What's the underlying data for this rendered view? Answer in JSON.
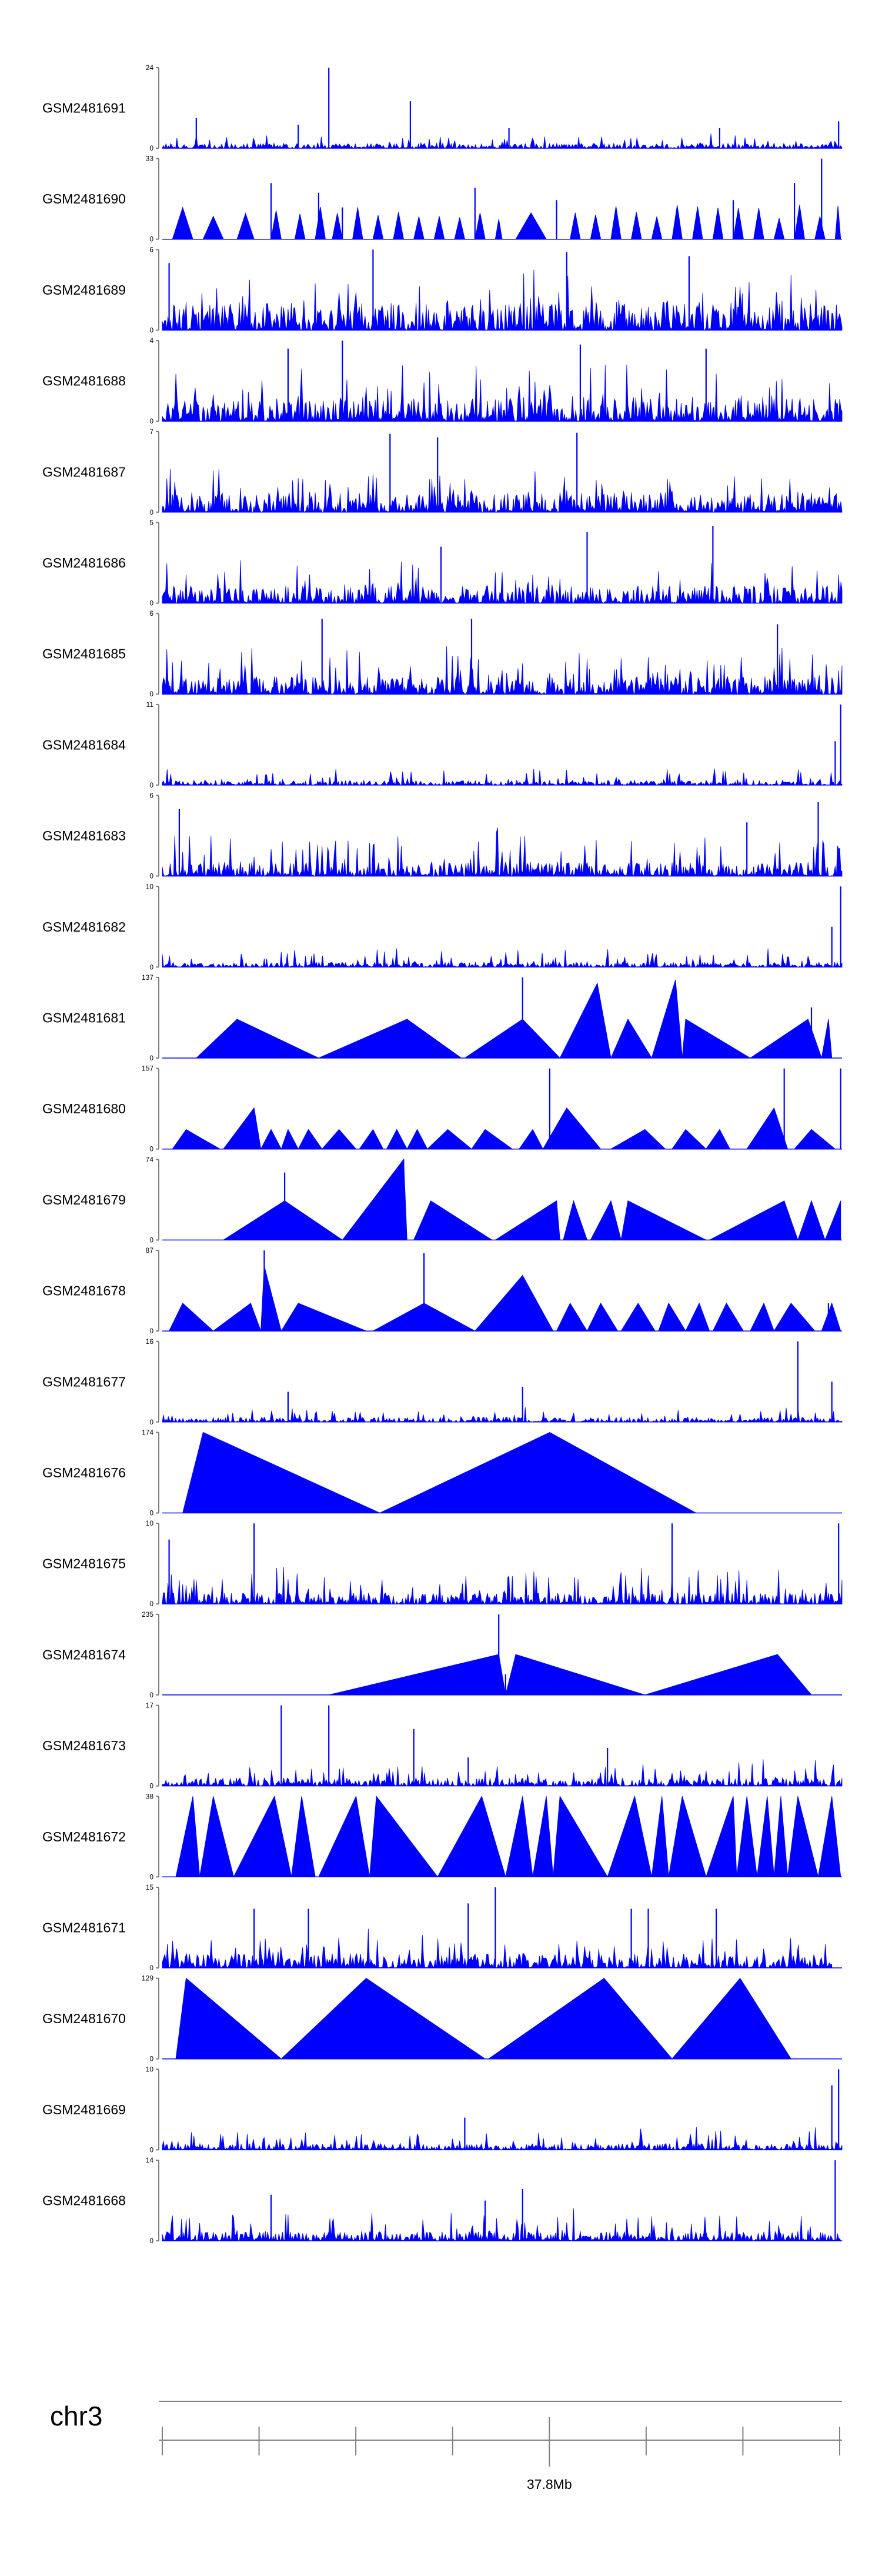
{
  "chart_data": {
    "type": "area",
    "title": "",
    "xlabel": "",
    "ylabel": "",
    "color": "#0000ff",
    "axis_color": "#808080",
    "tracks": [
      {
        "name": "GSM2481691",
        "ymax": 24,
        "ymin": 0,
        "style": "signal",
        "density": 560,
        "floor": 0.06,
        "spread": 0.14,
        "peaks": [
          [
            0.245,
            24
          ],
          [
            0.365,
            14
          ],
          [
            0.05,
            9
          ],
          [
            0.2,
            7
          ],
          [
            0.82,
            6
          ],
          [
            0.995,
            8
          ],
          [
            0.51,
            6
          ]
        ]
      },
      {
        "name": "GSM2481690",
        "ymax": 33,
        "ymin": 0,
        "style": "both",
        "tri": [
          0.015,
          0.045,
          0.06,
          0.09,
          0.11,
          0.135,
          0.16,
          0.175,
          0.195,
          0.21,
          0.225,
          0.24,
          0.25,
          0.265,
          0.28,
          0.295,
          0.31,
          0.325,
          0.34,
          0.355,
          0.37,
          0.385,
          0.4,
          0.415,
          0.43,
          0.445,
          0.46,
          0.475,
          0.49,
          0.5,
          0.52,
          0.565,
          0.6,
          0.615,
          0.63,
          0.645,
          0.66,
          0.675,
          0.69,
          0.705,
          0.72,
          0.735,
          0.75,
          0.765,
          0.78,
          0.795,
          0.81,
          0.825,
          0.84,
          0.855,
          0.87,
          0.885,
          0.9,
          0.915,
          0.93,
          0.945,
          0.96,
          0.975,
          0.99,
          0.998
        ],
        "triHeight": 11,
        "triVar": 3,
        "peaks": [
          [
            0.16,
            23
          ],
          [
            0.23,
            19
          ],
          [
            0.265,
            13
          ],
          [
            0.46,
            21
          ],
          [
            0.58,
            16
          ],
          [
            0.84,
            16
          ],
          [
            0.97,
            33
          ],
          [
            0.93,
            23
          ]
        ]
      },
      {
        "name": "GSM2481689",
        "ymax": 6,
        "ymin": 0,
        "style": "signal",
        "density": 600,
        "floor": 0.35,
        "spread": 0.45,
        "peaks": [
          [
            0.01,
            5
          ],
          [
            0.31,
            6
          ],
          [
            0.595,
            5.8
          ],
          [
            0.775,
            5.5
          ]
        ]
      },
      {
        "name": "GSM2481688",
        "ymax": 4,
        "ymin": 0,
        "style": "signal",
        "density": 600,
        "floor": 0.3,
        "spread": 0.5,
        "peaks": [
          [
            0.265,
            4
          ],
          [
            0.185,
            3.6
          ],
          [
            0.615,
            3.8
          ],
          [
            0.8,
            3.6
          ]
        ]
      },
      {
        "name": "GSM2481687",
        "ymax": 7,
        "ymin": 0,
        "style": "signal",
        "density": 600,
        "floor": 0.25,
        "spread": 0.45,
        "peaks": [
          [
            0.335,
            6.8
          ],
          [
            0.61,
            6.9
          ],
          [
            0.405,
            6.5
          ]
        ]
      },
      {
        "name": "GSM2481686",
        "ymax": 5,
        "ymin": 0,
        "style": "signal",
        "density": 600,
        "floor": 0.22,
        "spread": 0.4,
        "peaks": [
          [
            0.81,
            4.8
          ],
          [
            0.625,
            4.4
          ],
          [
            0.41,
            3.5
          ]
        ]
      },
      {
        "name": "GSM2481685",
        "ymax": 6,
        "ymin": 0,
        "style": "signal",
        "density": 600,
        "floor": 0.22,
        "spread": 0.45,
        "peaks": [
          [
            0.235,
            5.6
          ],
          [
            0.455,
            5.6
          ],
          [
            0.905,
            5.2
          ]
        ]
      },
      {
        "name": "GSM2481684",
        "ymax": 11,
        "ymin": 0,
        "style": "signal",
        "density": 560,
        "floor": 0.06,
        "spread": 0.18,
        "peaks": [
          [
            0.998,
            11
          ],
          [
            0.99,
            6
          ]
        ]
      },
      {
        "name": "GSM2481683",
        "ymax": 6,
        "ymin": 0,
        "style": "signal",
        "density": 600,
        "floor": 0.18,
        "spread": 0.45,
        "peaks": [
          [
            0.965,
            5.5
          ],
          [
            0.025,
            5
          ],
          [
            0.86,
            4
          ]
        ]
      },
      {
        "name": "GSM2481682",
        "ymax": 10,
        "ymin": 0,
        "style": "signal",
        "density": 560,
        "floor": 0.06,
        "spread": 0.2,
        "peaks": [
          [
            0.998,
            10
          ],
          [
            0.985,
            5
          ]
        ]
      },
      {
        "name": "GSM2481681",
        "ymax": 137,
        "ymin": 0,
        "style": "triangles",
        "shapes": [
          [
            0.05,
            0.11,
            0.23,
            66
          ],
          [
            0.23,
            0.36,
            0.44,
            66
          ],
          [
            0.445,
            0.53,
            0.585,
            66
          ],
          [
            0.585,
            0.64,
            0.66,
            127
          ],
          [
            0.66,
            0.685,
            0.72,
            66
          ],
          [
            0.72,
            0.755,
            0.765,
            133
          ],
          [
            0.765,
            0.77,
            0.865,
            66
          ],
          [
            0.865,
            0.95,
            0.97,
            66
          ],
          [
            0.97,
            0.98,
            0.985,
            66
          ]
        ],
        "spikes": [
          [
            0.53,
            137
          ],
          [
            0.955,
            86
          ]
        ]
      },
      {
        "name": "GSM2481680",
        "ymax": 157,
        "ymin": 0,
        "style": "triangles",
        "shapes": [
          [
            0.015,
            0.035,
            0.085,
            38
          ],
          [
            0.09,
            0.135,
            0.145,
            80
          ],
          [
            0.145,
            0.16,
            0.175,
            38
          ],
          [
            0.175,
            0.185,
            0.2,
            38
          ],
          [
            0.2,
            0.215,
            0.235,
            38
          ],
          [
            0.235,
            0.26,
            0.285,
            38
          ],
          [
            0.29,
            0.31,
            0.325,
            38
          ],
          [
            0.33,
            0.345,
            0.36,
            38
          ],
          [
            0.36,
            0.375,
            0.39,
            38
          ],
          [
            0.39,
            0.42,
            0.455,
            38
          ],
          [
            0.455,
            0.475,
            0.515,
            38
          ],
          [
            0.525,
            0.545,
            0.56,
            38
          ],
          [
            0.56,
            0.595,
            0.645,
            80
          ],
          [
            0.66,
            0.71,
            0.74,
            38
          ],
          [
            0.75,
            0.77,
            0.8,
            38
          ],
          [
            0.8,
            0.82,
            0.835,
            38
          ],
          [
            0.86,
            0.9,
            0.92,
            80
          ],
          [
            0.93,
            0.955,
            0.99,
            38
          ]
        ],
        "spikes": [
          [
            0.915,
            157
          ],
          [
            0.998,
            157
          ],
          [
            0.57,
            157
          ]
        ]
      },
      {
        "name": "GSM2481679",
        "ymax": 74,
        "ymin": 0,
        "style": "triangles",
        "shapes": [
          [
            0.09,
            0.18,
            0.265,
            36
          ],
          [
            0.265,
            0.355,
            0.36,
            74
          ],
          [
            0.37,
            0.395,
            0.485,
            36
          ],
          [
            0.49,
            0.58,
            0.585,
            36
          ],
          [
            0.59,
            0.605,
            0.625,
            36
          ],
          [
            0.63,
            0.66,
            0.675,
            36
          ],
          [
            0.675,
            0.685,
            0.8,
            36
          ],
          [
            0.805,
            0.915,
            0.935,
            36
          ],
          [
            0.935,
            0.955,
            0.975,
            36
          ],
          [
            0.975,
            0.998,
            0.998,
            36
          ]
        ],
        "spikes": [
          [
            0.18,
            62
          ],
          [
            0.355,
            74
          ]
        ]
      },
      {
        "name": "GSM2481678",
        "ymax": 87,
        "ymin": 0,
        "style": "triangles",
        "shapes": [
          [
            0.01,
            0.03,
            0.075,
            30
          ],
          [
            0.075,
            0.13,
            0.145,
            30
          ],
          [
            0.145,
            0.15,
            0.175,
            70
          ],
          [
            0.175,
            0.2,
            0.3,
            30
          ],
          [
            0.31,
            0.385,
            0.46,
            30
          ],
          [
            0.46,
            0.53,
            0.575,
            60
          ],
          [
            0.58,
            0.6,
            0.625,
            30
          ],
          [
            0.625,
            0.645,
            0.67,
            30
          ],
          [
            0.675,
            0.7,
            0.725,
            30
          ],
          [
            0.73,
            0.745,
            0.77,
            30
          ],
          [
            0.77,
            0.79,
            0.805,
            30
          ],
          [
            0.81,
            0.83,
            0.855,
            30
          ],
          [
            0.865,
            0.885,
            0.9,
            30
          ],
          [
            0.9,
            0.925,
            0.96,
            30
          ],
          [
            0.97,
            0.985,
            0.998,
            30
          ]
        ],
        "spikes": [
          [
            0.15,
            87
          ],
          [
            0.385,
            84
          ],
          [
            0.53,
            60
          ],
          [
            0.98,
            30
          ]
        ]
      },
      {
        "name": "GSM2481677",
        "ymax": 16,
        "ymin": 0,
        "style": "signal",
        "density": 560,
        "floor": 0.06,
        "spread": 0.14,
        "peaks": [
          [
            0.935,
            16
          ],
          [
            0.53,
            7
          ],
          [
            0.185,
            6
          ],
          [
            0.985,
            8
          ]
        ]
      },
      {
        "name": "GSM2481676",
        "ymax": 174,
        "ymin": 0,
        "style": "triangles",
        "shapes": [
          [
            0.03,
            0.06,
            0.32,
            174
          ],
          [
            0.32,
            0.57,
            0.785,
            174
          ]
        ],
        "spikes": []
      },
      {
        "name": "GSM2481675",
        "ymax": 10,
        "ymin": 0,
        "style": "signal",
        "density": 600,
        "floor": 0.14,
        "spread": 0.4,
        "peaks": [
          [
            0.135,
            10
          ],
          [
            0.75,
            10
          ],
          [
            0.995,
            10
          ],
          [
            0.01,
            8
          ]
        ]
      },
      {
        "name": "GSM2481674",
        "ymax": 235,
        "ymin": 0,
        "style": "triangles",
        "shapes": [
          [
            0.245,
            0.495,
            0.505,
            118
          ],
          [
            0.505,
            0.52,
            0.71,
            118
          ],
          [
            0.71,
            0.905,
            0.955,
            118
          ]
        ],
        "spikes": [
          [
            0.495,
            235
          ],
          [
            0.505,
            60
          ]
        ]
      },
      {
        "name": "GSM2481673",
        "ymax": 17,
        "ymin": 0,
        "style": "signal",
        "density": 560,
        "floor": 0.1,
        "spread": 0.25,
        "peaks": [
          [
            0.175,
            17
          ],
          [
            0.245,
            17
          ],
          [
            0.37,
            12
          ],
          [
            0.655,
            8
          ],
          [
            0.45,
            6
          ]
        ]
      },
      {
        "name": "GSM2481672",
        "ymax": 38,
        "ymin": 0,
        "style": "triangles",
        "shapes": [
          [
            0.02,
            0.045,
            0.055,
            38
          ],
          [
            0.055,
            0.075,
            0.105,
            38
          ],
          [
            0.105,
            0.165,
            0.19,
            38
          ],
          [
            0.19,
            0.205,
            0.225,
            38
          ],
          [
            0.23,
            0.285,
            0.305,
            38
          ],
          [
            0.305,
            0.315,
            0.405,
            38
          ],
          [
            0.405,
            0.47,
            0.505,
            38
          ],
          [
            0.505,
            0.53,
            0.545,
            38
          ],
          [
            0.545,
            0.565,
            0.575,
            38
          ],
          [
            0.575,
            0.585,
            0.655,
            38
          ],
          [
            0.655,
            0.695,
            0.72,
            38
          ],
          [
            0.72,
            0.735,
            0.745,
            38
          ],
          [
            0.745,
            0.765,
            0.8,
            38
          ],
          [
            0.8,
            0.84,
            0.845,
            38
          ],
          [
            0.845,
            0.86,
            0.875,
            38
          ],
          [
            0.875,
            0.89,
            0.9,
            38
          ],
          [
            0.9,
            0.91,
            0.92,
            38
          ],
          [
            0.92,
            0.935,
            0.965,
            38
          ],
          [
            0.965,
            0.985,
            0.998,
            38
          ]
        ],
        "spikes": [
          [
            0.17,
            28
          ]
        ]
      },
      {
        "name": "GSM2481671",
        "ymax": 15,
        "ymin": 0,
        "style": "signal",
        "density": 520,
        "floor": 0.18,
        "spread": 0.35,
        "end": 0.985,
        "peaks": [
          [
            0.49,
            15
          ],
          [
            0.135,
            11
          ],
          [
            0.215,
            11
          ],
          [
            0.45,
            12
          ],
          [
            0.69,
            11
          ],
          [
            0.715,
            11
          ],
          [
            0.815,
            11
          ]
        ]
      },
      {
        "name": "GSM2481670",
        "ymax": 129,
        "ymin": 0,
        "style": "triangles",
        "shapes": [
          [
            0.02,
            0.035,
            0.175,
            129
          ],
          [
            0.175,
            0.3,
            0.475,
            129
          ],
          [
            0.48,
            0.65,
            0.75,
            129
          ],
          [
            0.75,
            0.85,
            0.925,
            129
          ]
        ],
        "spikes": []
      },
      {
        "name": "GSM2481669",
        "ymax": 10,
        "ymin": 0,
        "style": "signal",
        "density": 560,
        "floor": 0.08,
        "spread": 0.22,
        "peaks": [
          [
            0.995,
            10
          ],
          [
            0.985,
            8
          ],
          [
            0.445,
            4
          ]
        ]
      },
      {
        "name": "GSM2481668",
        "ymax": 14,
        "ymin": 0,
        "style": "signal",
        "density": 600,
        "floor": 0.12,
        "spread": 0.3,
        "peaks": [
          [
            0.99,
            14
          ],
          [
            0.16,
            8
          ],
          [
            0.53,
            9
          ],
          [
            0.475,
            7
          ]
        ]
      }
    ],
    "genome_axis": {
      "chromosome": "chr3",
      "tick_count": 8,
      "labeled_tick": {
        "label": "37.8Mb",
        "index": 4
      }
    }
  }
}
